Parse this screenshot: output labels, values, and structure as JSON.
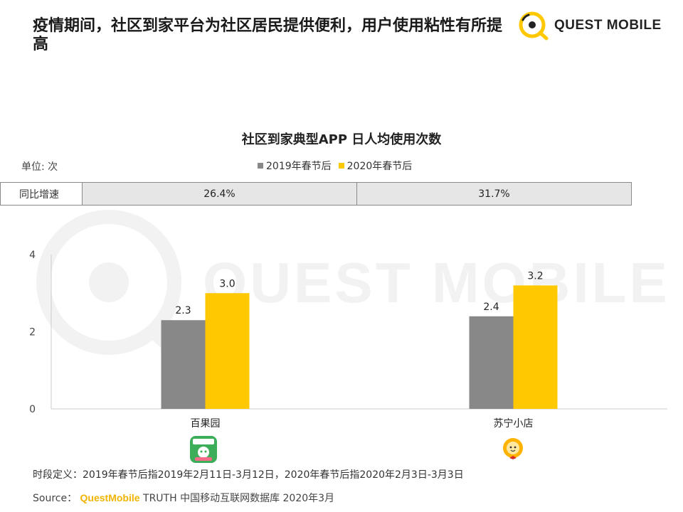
{
  "header": {
    "headline": "疫情期间，社区到家平台为社区居民提供便利，用户使用粘性有所提高",
    "logo_text": "QUEST MOBILE"
  },
  "watermark": {
    "text": "QUEST MOBILE"
  },
  "chart_data": {
    "type": "bar",
    "title": "社区到家典型APP 日人均使用次数",
    "unit": "单位: 次",
    "categories": [
      "百果园",
      "苏宁小店"
    ],
    "series": [
      {
        "name": "2019年春节后",
        "values": [
          2.3,
          2.4
        ],
        "color": "#888888"
      },
      {
        "name": "2020年春节后",
        "values": [
          3.0,
          3.2
        ],
        "color": "#ffc800"
      }
    ],
    "ylim": [
      0,
      4
    ],
    "yticks": [
      "0",
      "2",
      "4"
    ],
    "value_labels": [
      [
        "2.3",
        "2.4"
      ],
      [
        "3.0",
        "3.2"
      ]
    ],
    "growth_row": {
      "label": "同比增速",
      "values": [
        "26.4%",
        "31.7%"
      ]
    },
    "grid": false,
    "legend_position": "top-center"
  },
  "apps": [
    {
      "icon": "baiguoyuan-app-icon",
      "color": "#3cae5a"
    },
    {
      "icon": "suning-xiaodian-app-icon",
      "color": "#ffb300"
    }
  ],
  "footer": {
    "footnote": "时段定义：2019年春节后指2019年2月11日-3月12日，2020年春节后指2020年2月3日-3月3日",
    "source_label": "Source：",
    "source_brand": "QuestMobile",
    "source_rest": " TRUTH 中国移动互联网数据库 2020年3月"
  }
}
